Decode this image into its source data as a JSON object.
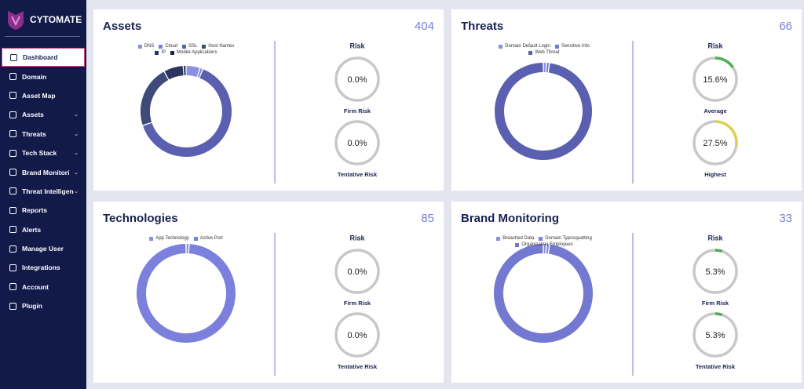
{
  "sidebar": {
    "brand": "CYTOMATE",
    "items": [
      {
        "label": "Dashboard",
        "active": true
      },
      {
        "label": "Domain"
      },
      {
        "label": "Asset Map"
      },
      {
        "label": "Assets",
        "expandable": true
      },
      {
        "label": "Threats",
        "expandable": true
      },
      {
        "label": "Tech Stack",
        "expandable": true
      },
      {
        "label": "Brand Monitori",
        "expandable": true
      },
      {
        "label": "Threat Intelligen",
        "expandable": true
      },
      {
        "label": "Reports"
      },
      {
        "label": "Alerts"
      },
      {
        "label": "Manage User"
      },
      {
        "label": "Integrations"
      },
      {
        "label": "Account"
      },
      {
        "label": "Plugin"
      }
    ]
  },
  "cards": [
    {
      "title": "Assets",
      "total": 404,
      "donut": {
        "labels": [
          "DNS",
          "Cloud",
          "SSL",
          "Host Names",
          "IP",
          "Mobile Applications"
        ],
        "colors": [
          "#8b8fe0",
          "#7c80d8",
          "#5a5fb0",
          "#3d4a7a",
          "#2a3560",
          "#1c2450"
        ],
        "values": [
          5,
          1,
          64,
          22,
          7,
          1
        ]
      },
      "risk": {
        "title": "Risk",
        "labels": [
          "Firm Risk",
          "Tentative Risk"
        ],
        "values": [
          0,
          0
        ],
        "value_labels": [
          "0.0%",
          "0.0%"
        ],
        "colors": [
          "#4caf50",
          "#4caf50"
        ]
      }
    },
    {
      "title": "Threats",
      "total": 66,
      "donut": {
        "labels": [
          "Domain Default Login",
          "Sensitive Info",
          "Web Threat"
        ],
        "colors": [
          "#8b8fe0",
          "#7378d0",
          "#5a5fb0"
        ],
        "values": [
          1,
          1,
          98
        ]
      },
      "risk": {
        "title": "Risk",
        "labels": [
          "Average",
          "Highest"
        ],
        "values": [
          15.6,
          27.5
        ],
        "value_labels": [
          "15.6%",
          "27.5%"
        ],
        "colors": [
          "#4caf50",
          "#e0d050"
        ]
      }
    },
    {
      "title": "Technologies",
      "total": 85,
      "donut": {
        "labels": [
          "App Technology",
          "Active Port"
        ],
        "colors": [
          "#8b8fe0",
          "#7b80dc"
        ],
        "values": [
          1,
          99
        ]
      },
      "risk": {
        "title": "Risk",
        "labels": [
          "Firm Risk",
          "Tentative Risk"
        ],
        "values": [
          0,
          0
        ],
        "value_labels": [
          "0.0%",
          "0.0%"
        ],
        "colors": [
          "#4caf50",
          "#4caf50"
        ]
      }
    },
    {
      "title": "Brand Monitoring",
      "total": 33,
      "donut": {
        "labels": [
          "Breached Data",
          "Domain Typosquatting",
          "Organization Employees"
        ],
        "colors": [
          "#8b8fe0",
          "#7c80d8",
          "#7378d0"
        ],
        "values": [
          1,
          1,
          98
        ]
      },
      "risk": {
        "title": "Risk",
        "labels": [
          "Firm Risk",
          "Tentative Risk"
        ],
        "values": [
          5.3,
          5.3
        ],
        "value_labels": [
          "5.3%",
          "5.3%"
        ],
        "colors": [
          "#4caf50",
          "#4caf50"
        ]
      }
    }
  ]
}
